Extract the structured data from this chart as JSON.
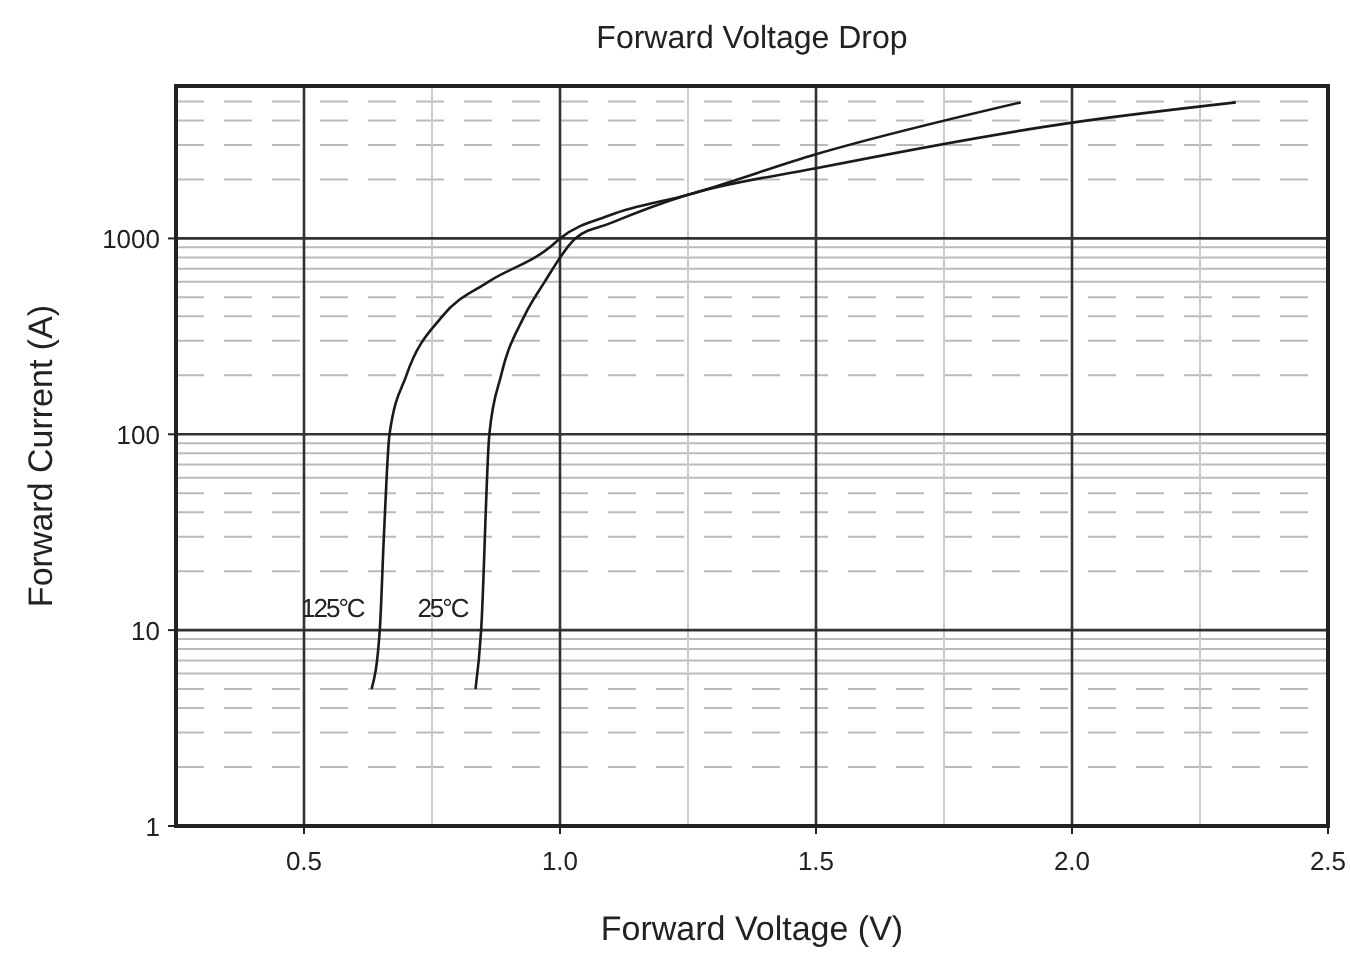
{
  "chart_data": {
    "type": "line",
    "title": "Forward Voltage Drop",
    "xlabel": "Forward Voltage (V)",
    "ylabel": "Forward Current (A)",
    "log": "y",
    "grid": true,
    "line_style": "solid",
    "marker": "none",
    "xlim": [
      0.25,
      2.5
    ],
    "xticks": [
      0.5,
      {
        "value": 1,
        "label": "1.0"
      },
      1.5,
      {
        "value": 2,
        "label": "2.0"
      },
      2.5
    ],
    "ylim": [
      1,
      6000
    ],
    "yticks": [
      1,
      10,
      100,
      1000
    ],
    "series": [
      {
        "name": "125°C",
        "color": "#1a1a1a",
        "x": [
          0.632,
          0.648,
          0.656,
          0.667,
          0.7,
          0.77,
          0.86,
          0.98,
          1.0,
          1.1,
          1.25,
          1.5,
          1.9
        ],
        "values": [
          5,
          10,
          30,
          100,
          200,
          400,
          600,
          900,
          1000,
          1320,
          1670,
          2690,
          4950
        ]
      },
      {
        "name": "25°C",
        "color": "#1a1a1a",
        "x": [
          0.835,
          0.846,
          0.862,
          0.885,
          0.93,
          0.97,
          1.03,
          1.1,
          1.25,
          1.5,
          2.0,
          2.32
        ],
        "values": [
          5,
          10,
          100,
          200,
          400,
          600,
          1000,
          1200,
          1670,
          2280,
          3900,
          4950
        ]
      }
    ]
  }
}
